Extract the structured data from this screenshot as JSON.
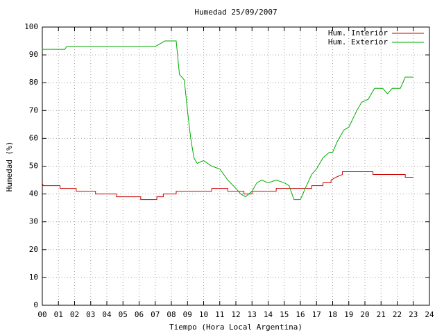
{
  "chart_data": {
    "type": "line",
    "title": "Humedad 25/09/2007",
    "x_label": "Tiempo (Hora Local Argentina)",
    "y_label": "Humedad (%)",
    "xlim": [
      0,
      24
    ],
    "ylim": [
      0,
      100
    ],
    "xticks": [
      {
        "value": 0,
        "label": "00"
      },
      {
        "value": 1,
        "label": "01"
      },
      {
        "value": 2,
        "label": "02"
      },
      {
        "value": 3,
        "label": "03"
      },
      {
        "value": 4,
        "label": "04"
      },
      {
        "value": 5,
        "label": "05"
      },
      {
        "value": 6,
        "label": "06"
      },
      {
        "value": 7,
        "label": "07"
      },
      {
        "value": 8,
        "label": "08"
      },
      {
        "value": 9,
        "label": "09"
      },
      10,
      11,
      12,
      13,
      14,
      15,
      16,
      17,
      18,
      19,
      20,
      21,
      22,
      23,
      24
    ],
    "yticks": [
      0,
      10,
      20,
      30,
      40,
      50,
      60,
      70,
      80,
      90,
      100
    ],
    "grid": true,
    "legend": "top-right",
    "series": [
      {
        "name": "Hum. Interior",
        "color": "#cc0000",
        "x": [
          0,
          0.05,
          1.1,
          1.1,
          2.1,
          2.1,
          3.3,
          3.3,
          4.6,
          4.6,
          6.1,
          6.1,
          7.1,
          7.1,
          7.5,
          7.5,
          8.3,
          8.3,
          10.5,
          10.5,
          11.5,
          11.5,
          12.5,
          12.5,
          13.0,
          13.0,
          14.5,
          14.5,
          16.7,
          16.7,
          17.4,
          17.4,
          17.9,
          17.9,
          18.2,
          18.2,
          18.6,
          18.6,
          20.5,
          20.5,
          22.5,
          22.5,
          23.0
        ],
        "values": [
          44,
          43,
          43,
          42,
          42,
          41,
          41,
          40,
          40,
          39,
          39,
          38,
          38,
          39,
          39,
          40,
          40,
          41,
          41,
          42,
          42,
          41,
          41,
          40,
          40,
          41,
          41,
          42,
          42,
          43,
          43,
          44,
          44,
          45,
          46,
          46,
          47,
          48,
          48,
          47,
          47,
          46,
          46
        ]
      },
      {
        "name": "Hum. Exterior",
        "color": "#00aa00",
        "x": [
          0,
          1.4,
          1.5,
          5.5,
          7.0,
          7.3,
          7.6,
          8.3,
          8.5,
          8.8,
          9.0,
          9.2,
          9.4,
          9.6,
          10.0,
          10.5,
          11.0,
          11.5,
          12.0,
          12.3,
          12.6,
          13.0,
          13.3,
          13.6,
          14.0,
          14.5,
          15.0,
          15.3,
          15.6,
          16.0,
          16.3,
          16.7,
          17.0,
          17.4,
          17.8,
          18.0,
          18.3,
          18.7,
          19.0,
          19.5,
          19.8,
          20.2,
          20.6,
          21.1,
          21.4,
          21.7,
          22.2,
          22.5,
          23.0
        ],
        "values": [
          92,
          92,
          93,
          93,
          93,
          94,
          95,
          95,
          83,
          81,
          70,
          60,
          53,
          51,
          52,
          50,
          49,
          45,
          42,
          40,
          39,
          41,
          44,
          45,
          44,
          45,
          44,
          43,
          38,
          38,
          42,
          47,
          49,
          53,
          55,
          55,
          59,
          63,
          64,
          70,
          73,
          74,
          78,
          78,
          76,
          78,
          78,
          82,
          82
        ]
      }
    ]
  }
}
